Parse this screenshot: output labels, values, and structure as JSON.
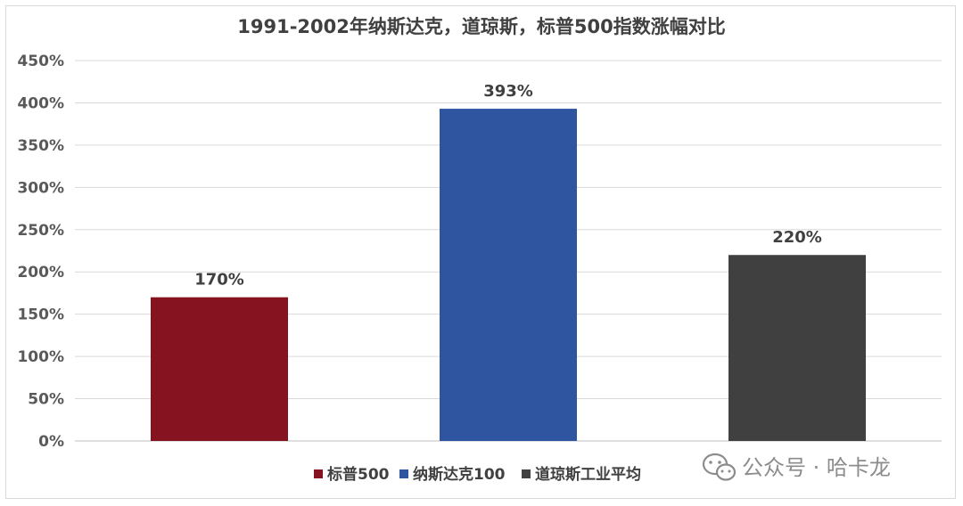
{
  "chart_data": {
    "type": "bar",
    "title": "1991-2002年纳斯达克，道琼斯，标普500指数涨幅对比",
    "categories": [
      "标普500",
      "纳斯达克100",
      "道琼斯工业平均"
    ],
    "values": [
      170,
      393,
      220
    ],
    "value_labels": [
      "170%",
      "393%",
      "220%"
    ],
    "colors": [
      "#861320",
      "#2f54a0",
      "#404040"
    ],
    "ylim": [
      0,
      450
    ],
    "yticks": [
      0,
      50,
      100,
      150,
      200,
      250,
      300,
      350,
      400,
      450
    ],
    "ytick_labels": [
      "0%",
      "50%",
      "100%",
      "150%",
      "200%",
      "250%",
      "300%",
      "350%",
      "400%",
      "450%"
    ],
    "xlabel": "",
    "ylabel": "",
    "grid": true,
    "legend_position": "bottom-center"
  },
  "watermark": {
    "icon": "wechat-icon",
    "text": "公众号 · 哈卡龙"
  }
}
